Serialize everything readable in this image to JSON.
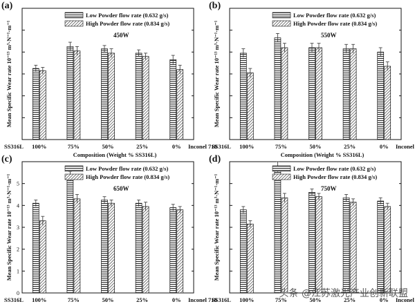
{
  "chart_data": [
    {
      "type": "bar",
      "panel_label": "(a)",
      "title": "450W",
      "xlabel": "Composition (Weight % SS316L)",
      "ylabel": "Mean Specific Wear rate 10⁻¹³ m³·N⁻¹·m⁻¹",
      "x_left_label": "SS316L",
      "x_right_label": "Inconel 718",
      "categories": [
        "100%",
        "75%",
        "50%",
        "25%",
        "0%"
      ],
      "ylim": [
        0,
        6
      ],
      "yticks": [],
      "series": [
        {
          "name": "Low Powder flow rate (0.632 g/s)",
          "values": [
            3.25,
            4.25,
            4.15,
            3.95,
            3.65
          ],
          "errors": [
            0.15,
            0.2,
            0.15,
            0.15,
            0.2
          ]
        },
        {
          "name": "High Powder flow rate (0.834 g/s)",
          "values": [
            3.15,
            4.05,
            3.95,
            3.8,
            3.2
          ],
          "errors": [
            0.15,
            0.2,
            0.2,
            0.15,
            0.2
          ]
        }
      ]
    },
    {
      "type": "bar",
      "panel_label": "(b)",
      "title": "550W",
      "xlabel": "Composition (Weight % SS316L)",
      "ylabel": "Mean Specific Wear rate 10⁻¹³ m³·N⁻¹·m⁻¹",
      "x_left_label": "SS316L",
      "x_right_label": "Inconel 718",
      "categories": [
        "100%",
        "75%",
        "50%",
        "25%",
        "0%"
      ],
      "ylim": [
        0,
        6
      ],
      "yticks": [],
      "series": [
        {
          "name": "Low Powder flow rate (0.632 g/s)",
          "values": [
            3.95,
            4.65,
            4.2,
            4.15,
            4.0
          ],
          "errors": [
            0.2,
            0.2,
            0.2,
            0.2,
            0.2
          ]
        },
        {
          "name": "High Powder flow rate (0.834 g/s)",
          "values": [
            3.05,
            4.2,
            4.2,
            4.15,
            3.35
          ],
          "errors": [
            0.2,
            0.2,
            0.2,
            0.2,
            0.2
          ]
        }
      ]
    },
    {
      "type": "bar",
      "panel_label": "(c)",
      "title": "650W",
      "xlabel": "Composition (Weight % SS316L)",
      "ylabel": "Mean Specific Wear rate 10⁻¹³ m³·N⁻¹·m⁻¹",
      "x_left_label": "SS316L",
      "x_right_label": "Inconel 718",
      "categories": [
        "100%",
        "75%",
        "50%",
        "25%",
        "0%"
      ],
      "ylim": [
        0,
        6
      ],
      "yticks": [
        0,
        1,
        2,
        3,
        4,
        5
      ],
      "series": [
        {
          "name": "Low Powder flow rate (0.632 g/s)",
          "values": [
            4.1,
            5.35,
            4.25,
            4.1,
            3.9
          ],
          "errors": [
            0.15,
            0.2,
            0.15,
            0.15,
            0.15
          ]
        },
        {
          "name": "High Powder flow rate (0.834 g/s)",
          "values": [
            3.3,
            4.3,
            4.1,
            3.95,
            3.8
          ],
          "errors": [
            0.2,
            0.2,
            0.15,
            0.2,
            0.15
          ]
        }
      ]
    },
    {
      "type": "bar",
      "panel_label": "(d)",
      "title": "750W",
      "xlabel": "Composition (Weight % SS316L)",
      "ylabel": "Mean Specific Wear rate 10⁻¹³ m³·N⁻¹·m⁻¹",
      "x_left_label": "SS316L",
      "x_right_label": "Inconel 718",
      "categories": [
        "100%",
        "75%",
        "50%",
        "25%",
        "0%"
      ],
      "ylim": [
        0,
        6
      ],
      "yticks": [],
      "series": [
        {
          "name": "Low Powder flow rate (0.632 g/s)",
          "values": [
            3.8,
            5.75,
            4.6,
            4.35,
            4.2
          ],
          "errors": [
            0.15,
            0.25,
            0.15,
            0.15,
            0.15
          ]
        },
        {
          "name": "High Powder flow rate (0.834 g/s)",
          "values": [
            3.15,
            4.35,
            4.4,
            4.15,
            3.95
          ],
          "errors": [
            0.15,
            0.2,
            0.15,
            0.15,
            0.15
          ]
        }
      ]
    }
  ],
  "watermark": "头条 @江苏激光产业创新联盟"
}
